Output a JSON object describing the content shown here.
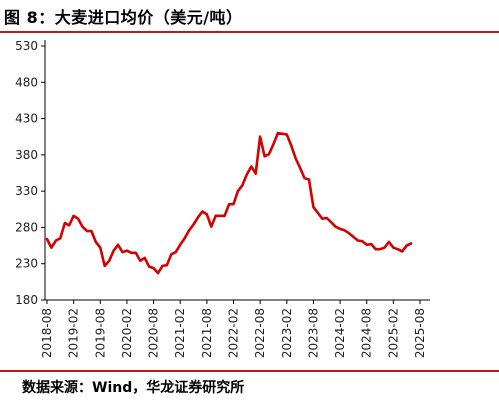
{
  "title": "图 8：大麦进口均价（美元/吨）",
  "source": "数据来源：Wind，华龙证券研究所",
  "colors": {
    "line": "#d50000",
    "rule": "#b71c1c",
    "axis": "#000000"
  },
  "chart_data": {
    "type": "line",
    "title": "",
    "xlabel": "",
    "ylabel": "",
    "ylim": [
      180,
      530
    ],
    "yticks": [
      180,
      230,
      280,
      330,
      380,
      430,
      480,
      530
    ],
    "xticks": [
      "2018-08",
      "2019-02",
      "2019-08",
      "2020-02",
      "2020-08",
      "2021-02",
      "2021-08",
      "2022-02",
      "2022-08",
      "2023-02",
      "2023-08",
      "2024-02",
      "2024-08",
      "2025-02",
      "2025-08"
    ],
    "grid": false,
    "legend": "none",
    "series": [
      {
        "name": "",
        "x": [
          "2018-08",
          "2018-09",
          "2018-10",
          "2018-11",
          "2018-12",
          "2019-01",
          "2019-02",
          "2019-03",
          "2019-04",
          "2019-05",
          "2019-06",
          "2019-07",
          "2019-08",
          "2019-09",
          "2019-10",
          "2019-11",
          "2019-12",
          "2020-01",
          "2020-02",
          "2020-03",
          "2020-04",
          "2020-05",
          "2020-06",
          "2020-07",
          "2020-08",
          "2020-09",
          "2020-10",
          "2020-11",
          "2020-12",
          "2021-01",
          "2021-02",
          "2021-03",
          "2021-04",
          "2021-05",
          "2021-06",
          "2021-07",
          "2021-08",
          "2021-09",
          "2021-10",
          "2021-11",
          "2021-12",
          "2022-01",
          "2022-02",
          "2022-03",
          "2022-04",
          "2022-05",
          "2022-06",
          "2022-07",
          "2022-08",
          "2022-09",
          "2022-10",
          "2022-11",
          "2022-12",
          "2023-01",
          "2023-02",
          "2023-03",
          "2023-04",
          "2023-05",
          "2023-06",
          "2023-07",
          "2023-08",
          "2023-09",
          "2023-10",
          "2023-11",
          "2023-12",
          "2024-01",
          "2024-02",
          "2024-03",
          "2024-04",
          "2024-05",
          "2024-06",
          "2024-07",
          "2024-08",
          "2024-09",
          "2024-10",
          "2024-11",
          "2024-12",
          "2025-01",
          "2025-02",
          "2025-03",
          "2025-04",
          "2025-05",
          "2025-06"
        ],
        "values": [
          264,
          252,
          262,
          265,
          286,
          283,
          296,
          292,
          281,
          275,
          275,
          260,
          252,
          227,
          234,
          248,
          256,
          246,
          248,
          245,
          245,
          234,
          238,
          226,
          224,
          217,
          227,
          228,
          243,
          246,
          256,
          265,
          276,
          284,
          294,
          302,
          298,
          281,
          296,
          296,
          296,
          312,
          312,
          330,
          338,
          353,
          364,
          354,
          405,
          378,
          381,
          395,
          410,
          409,
          408,
          393,
          375,
          362,
          348,
          346,
          308,
          300,
          292,
          293,
          287,
          281,
          278,
          276,
          272,
          267,
          262,
          261,
          256,
          257,
          250,
          250,
          252,
          260,
          252,
          250,
          247,
          255,
          258
        ]
      }
    ]
  }
}
